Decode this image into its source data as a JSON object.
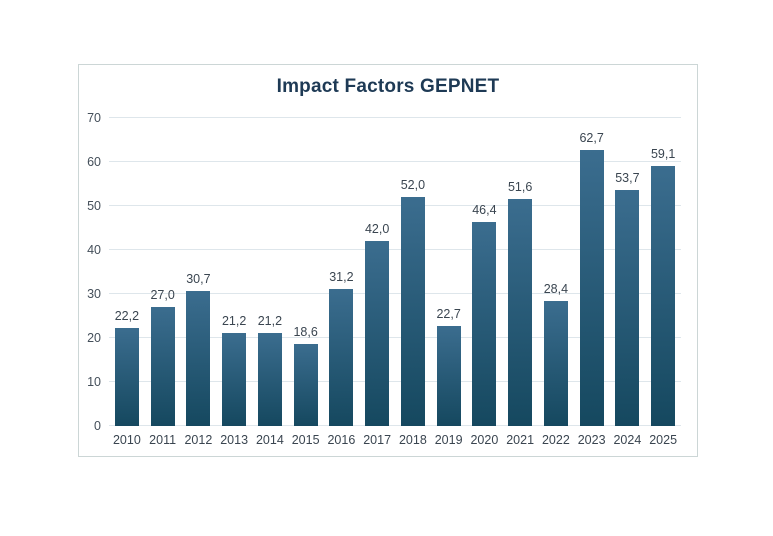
{
  "chart_data": {
    "type": "bar",
    "title": "Impact Factors GEPNET",
    "categories": [
      "2010",
      "2011",
      "2012",
      "2013",
      "2014",
      "2015",
      "2016",
      "2017",
      "2018",
      "2019",
      "2020",
      "2021",
      "2022",
      "2023",
      "2024",
      "2025"
    ],
    "values": [
      22.2,
      27.0,
      30.7,
      21.2,
      21.2,
      18.6,
      31.2,
      42.0,
      52.0,
      22.7,
      46.4,
      51.6,
      28.4,
      62.7,
      53.7,
      59.1
    ],
    "value_labels": [
      "22,2",
      "27,0",
      "30,7",
      "21,2",
      "21,2",
      "18,6",
      "31,2",
      "42,0",
      "52,0",
      "22,7",
      "46,4",
      "51,6",
      "28,4",
      "62,7",
      "53,7",
      "59,1"
    ],
    "xlabel": "",
    "ylabel": "",
    "ylim": [
      0,
      70
    ],
    "yticks": [
      0,
      10,
      20,
      30,
      40,
      50,
      60,
      70
    ],
    "grid": true,
    "legend": "none",
    "colors": {
      "bar_gradient_top": "#3b6d8f",
      "bar_gradient_bottom": "#15485f",
      "gridline": "#dee6eb",
      "title_text": "#1e3a55",
      "tick_text": "#444f5a",
      "data_label_text": "#3a4550",
      "frame_border": "#ccd6d6"
    }
  }
}
